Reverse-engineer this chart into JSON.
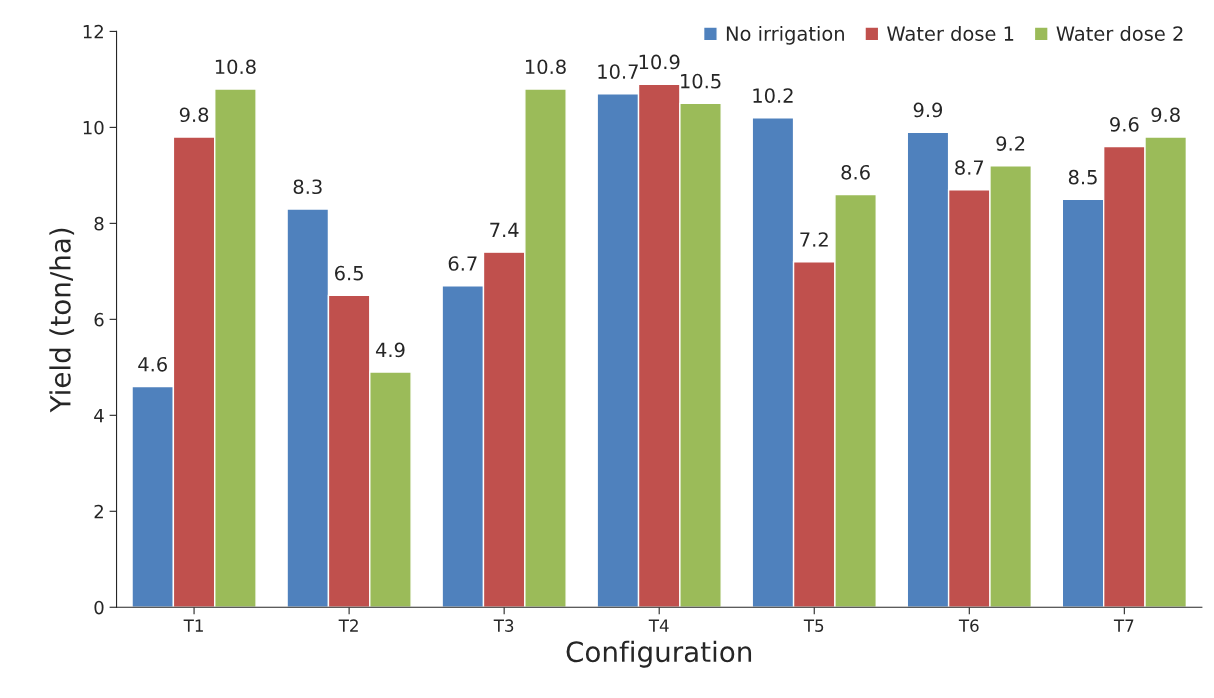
{
  "chart_data": {
    "type": "bar",
    "xlabel": "Configuration",
    "ylabel": "Yield (ton/ha)",
    "categories": [
      "T1",
      "T2",
      "T3",
      "T4",
      "T5",
      "T6",
      "T7"
    ],
    "series": [
      {
        "name": "No irrigation",
        "color": "#4f81bd",
        "values": [
          4.6,
          8.3,
          6.7,
          10.7,
          10.2,
          9.9,
          8.5
        ]
      },
      {
        "name": "Water dose 1",
        "color": "#c0504d",
        "values": [
          9.8,
          6.5,
          7.4,
          10.9,
          7.2,
          8.7,
          9.6
        ]
      },
      {
        "name": "Water dose 2",
        "color": "#9bbb59",
        "values": [
          10.8,
          4.9,
          10.8,
          10.5,
          8.6,
          9.2,
          9.8
        ]
      }
    ],
    "ylim": [
      0,
      12
    ],
    "yticks": [
      0,
      2,
      4,
      6,
      8,
      10,
      12
    ],
    "data_labels": true,
    "legend": "top right",
    "grid": false
  }
}
